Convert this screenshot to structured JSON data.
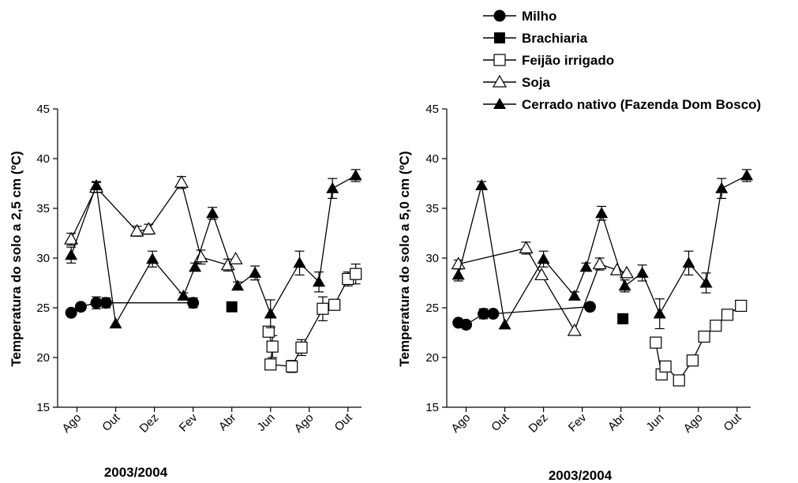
{
  "chart_data": [
    {
      "type": "line",
      "panel": "left",
      "xlabel": "2003/2004",
      "ylabel": "Temperatura do solo a 2,5 cm (ºC)",
      "ylim": [
        15,
        45
      ],
      "yticks": [
        15,
        20,
        25,
        30,
        35,
        40,
        45
      ],
      "xticks": [
        {
          "label": "Ago",
          "x": 0
        },
        {
          "label": "Out",
          "x": 2
        },
        {
          "label": "Dez",
          "x": 4
        },
        {
          "label": "Fev",
          "x": 6
        },
        {
          "label": "Abr",
          "x": 8
        },
        {
          "label": "Jun",
          "x": 10
        },
        {
          "label": "Ago",
          "x": 12
        },
        {
          "label": "Out",
          "x": 14
        }
      ],
      "xlim": [
        -1,
        14.7
      ],
      "grid": false,
      "series": [
        {
          "name": "Milho",
          "marker": "circle-filled",
          "points": [
            [
              -0.3,
              24.5,
              0
            ],
            [
              0.2,
              25.1,
              0
            ],
            [
              1.0,
              25.5,
              0.6
            ],
            [
              1.5,
              25.5,
              0.5
            ],
            [
              6.0,
              25.5,
              0.5
            ]
          ]
        },
        {
          "name": "Brachiaria",
          "marker": "square-filled",
          "points": [
            [
              8.0,
              25.1,
              0
            ]
          ]
        },
        {
          "name": "Feijão irrigado",
          "marker": "square-open",
          "points": [
            [
              9.9,
              22.6,
              0
            ],
            [
              10.1,
              21.1,
              1.1
            ],
            [
              10.0,
              19.3,
              0
            ],
            [
              11.1,
              19.1,
              0.6
            ],
            [
              11.6,
              21.0,
              0.8
            ],
            [
              12.7,
              24.9,
              1.2
            ],
            [
              13.3,
              25.3,
              0
            ],
            [
              14.0,
              27.9,
              0.7
            ],
            [
              14.4,
              28.4,
              1.0
            ]
          ]
        },
        {
          "name": "Soja",
          "marker": "triangle-open",
          "points": [
            [
              -0.3,
              31.9,
              0.6
            ],
            [
              1.0,
              37.1,
              0.5
            ],
            [
              3.1,
              32.7,
              0.5
            ],
            [
              3.7,
              32.9,
              0.5
            ],
            [
              5.4,
              37.6,
              0.6
            ],
            [
              6.4,
              30.1,
              0.7
            ],
            [
              7.8,
              29.3,
              0.6
            ],
            [
              8.2,
              29.9,
              0
            ]
          ]
        },
        {
          "name": "Cerrado nativo (Fazenda Dom Bosco)",
          "marker": "triangle-filled",
          "points": [
            [
              -0.3,
              30.3,
              0.8
            ],
            [
              1.0,
              37.3,
              0.4
            ],
            [
              2.0,
              23.4,
              0
            ],
            [
              3.9,
              29.9,
              0.8
            ],
            [
              5.5,
              26.2,
              0.3
            ],
            [
              6.1,
              29.1,
              0.4
            ],
            [
              7.0,
              34.5,
              0.6
            ],
            [
              8.3,
              27.2,
              0.4
            ],
            [
              9.2,
              28.5,
              0.7
            ],
            [
              10.0,
              24.4,
              1.4
            ],
            [
              11.5,
              29.5,
              1.2
            ],
            [
              12.5,
              27.6,
              1.0
            ],
            [
              13.2,
              37.0,
              1.0
            ],
            [
              14.4,
              38.3,
              0.6
            ]
          ]
        }
      ]
    },
    {
      "type": "line",
      "panel": "right",
      "xlabel": "2003/2004",
      "ylabel": "Temperatura do solo a 5,0 cm (ºC)",
      "ylim": [
        15,
        45
      ],
      "yticks": [
        15,
        20,
        25,
        30,
        35,
        40,
        45
      ],
      "xticks": [
        {
          "label": "Ago",
          "x": 0
        },
        {
          "label": "Out",
          "x": 2
        },
        {
          "label": "Dez",
          "x": 4
        },
        {
          "label": "Fev",
          "x": 6
        },
        {
          "label": "Abr",
          "x": 8
        },
        {
          "label": "Jun",
          "x": 10
        },
        {
          "label": "Ago",
          "x": 12
        },
        {
          "label": "Out",
          "x": 14
        }
      ],
      "xlim": [
        -1,
        14.7
      ],
      "grid": false,
      "series": [
        {
          "name": "Milho",
          "marker": "circle-filled",
          "points": [
            [
              -0.4,
              23.5,
              0
            ],
            [
              0.0,
              23.3,
              0
            ],
            [
              0.9,
              24.4,
              0.5
            ],
            [
              1.4,
              24.4,
              0
            ],
            [
              6.4,
              25.1,
              0
            ]
          ]
        },
        {
          "name": "Brachiaria",
          "marker": "square-filled",
          "points": [
            [
              8.1,
              23.9,
              0
            ]
          ]
        },
        {
          "name": "Feijão irrigado",
          "marker": "square-open",
          "points": [
            [
              9.8,
              21.5,
              0
            ],
            [
              10.1,
              18.3,
              0
            ],
            [
              10.3,
              19.1,
              0.4
            ],
            [
              11.0,
              17.7,
              0
            ],
            [
              11.7,
              19.7,
              0
            ],
            [
              12.3,
              22.1,
              0
            ],
            [
              12.9,
              23.2,
              0
            ],
            [
              13.5,
              24.3,
              0
            ],
            [
              14.2,
              25.2,
              0
            ]
          ]
        },
        {
          "name": "Soja",
          "marker": "triangle-open",
          "points": [
            [
              -0.4,
              29.4,
              0.4
            ],
            [
              3.1,
              31.0,
              0.6
            ],
            [
              3.9,
              28.3,
              0
            ],
            [
              5.6,
              22.7,
              0
            ],
            [
              6.9,
              29.4,
              0.6
            ],
            [
              7.8,
              28.8,
              0
            ],
            [
              8.3,
              28.5,
              0
            ]
          ]
        },
        {
          "name": "Cerrado nativo (Fazenda Dom Bosco)",
          "marker": "triangle-filled",
          "points": [
            [
              -0.4,
              28.3,
              0.6
            ],
            [
              0.8,
              37.3,
              0.4
            ],
            [
              2.0,
              23.3,
              0
            ],
            [
              4.0,
              29.9,
              0.8
            ],
            [
              5.6,
              26.2,
              0.4
            ],
            [
              6.2,
              29.1,
              0.4
            ],
            [
              7.0,
              34.5,
              0.7
            ],
            [
              8.2,
              27.2,
              0.6
            ],
            [
              9.1,
              28.5,
              0.8
            ],
            [
              10.0,
              24.4,
              1.5
            ],
            [
              11.5,
              29.5,
              1.2
            ],
            [
              12.4,
              27.5,
              1.0
            ],
            [
              13.2,
              37.0,
              1.0
            ],
            [
              14.5,
              38.3,
              0.6
            ]
          ]
        }
      ]
    }
  ],
  "legend": {
    "position": "top-right",
    "entries": [
      {
        "label": "Milho",
        "marker": "circle-filled"
      },
      {
        "label": "Brachiaria",
        "marker": "square-filled"
      },
      {
        "label": "Feijão irrigado",
        "marker": "square-open"
      },
      {
        "label": "Soja",
        "marker": "triangle-open"
      },
      {
        "label": "Cerrado nativo (Fazenda Dom Bosco)",
        "marker": "triangle-filled"
      }
    ]
  }
}
